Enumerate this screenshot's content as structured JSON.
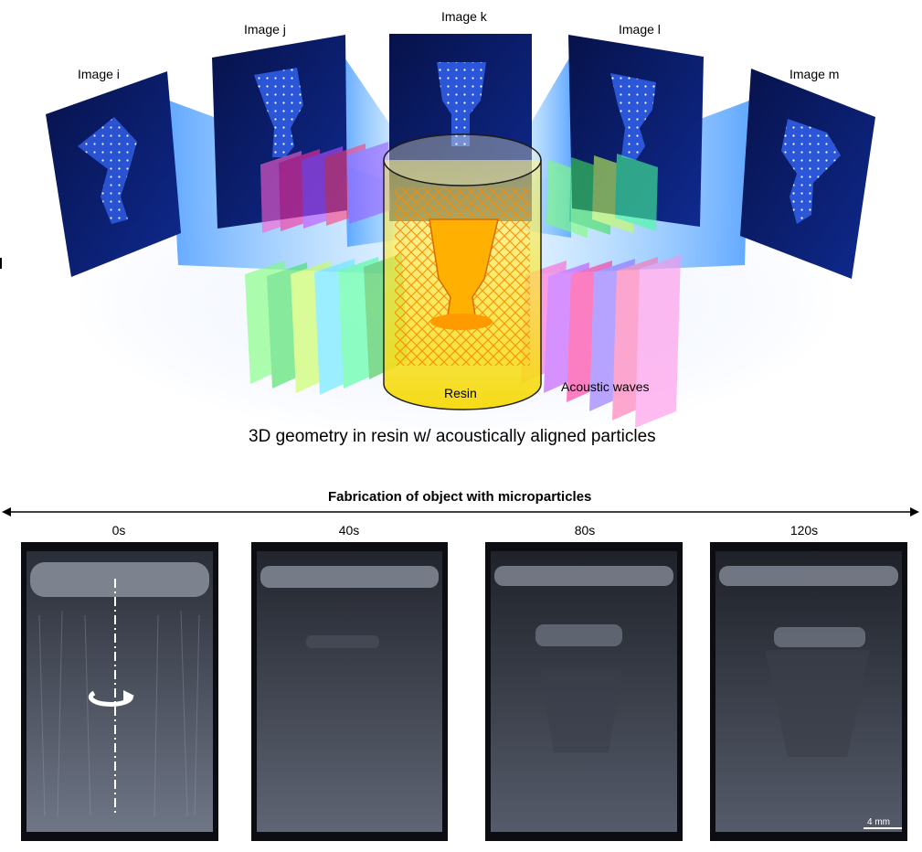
{
  "top_figure": {
    "projection_labels": [
      "Image i",
      "Image j",
      "Image k",
      "Image l",
      "Image m"
    ],
    "resin_label": "Resin",
    "acoustic_label": "Acoustic waves",
    "caption": "3D geometry in resin w/ acoustically aligned particles"
  },
  "bottom_figure": {
    "arrow_label": "Fabrication of object with microparticles",
    "timepoints": [
      "0s",
      "40s",
      "80s",
      "120s"
    ],
    "scale_bar": "4 mm"
  },
  "colors": {
    "screen_dark": "#0a1a5c",
    "beam_blue": "#2f8cff",
    "resin_yellow": "#f5e02a",
    "object_orange": "#ff9a00"
  }
}
